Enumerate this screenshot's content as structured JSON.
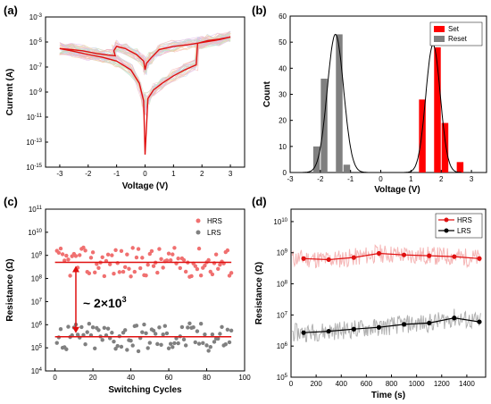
{
  "chart_data": [
    {
      "panel": "(a)",
      "type": "line",
      "xlabel": "Voltage (V)",
      "ylabel": "Current (A)",
      "xlim": [
        -3.5,
        3.5
      ],
      "ylim_log10": [
        -15,
        -3
      ],
      "yscale": "log",
      "x_ticks": [
        "-3",
        "-2",
        "-1",
        "0",
        "1",
        "2",
        "3"
      ],
      "y_ticks": [
        "10-15",
        "10-13",
        "10-11",
        "10-9",
        "10-7",
        "10-5",
        "10-3"
      ],
      "series": [
        {
          "highlight": true,
          "color": "#e01010",
          "points": [
            [
              0,
              1e-14
            ],
            [
              0.1,
              3e-10
            ],
            [
              0.3,
              1.5e-09
            ],
            [
              0.6,
              5e-09
            ],
            [
              1.0,
              2e-08
            ],
            [
              1.4,
              6e-08
            ],
            [
              1.8,
              1.5e-07
            ],
            [
              1.85,
              8e-06
            ],
            [
              2.2,
              1.3e-05
            ],
            [
              2.6,
              1.7e-05
            ],
            [
              3.0,
              2.5e-05
            ],
            [
              2.6,
              1.5e-05
            ],
            [
              2.0,
              9e-06
            ],
            [
              1.5,
              6e-06
            ],
            [
              1.0,
              4.5e-06
            ],
            [
              0.5,
              2.5e-06
            ],
            [
              0.2,
              5e-07
            ],
            [
              0.05,
              2e-07
            ],
            [
              0,
              6e-08
            ],
            [
              -0.05,
              3e-07
            ],
            [
              -0.3,
              1e-06
            ],
            [
              -0.7,
              3e-06
            ],
            [
              -1.0,
              4.5e-06
            ],
            [
              -1.1,
              2e-06
            ],
            [
              -1.05,
              8e-07
            ],
            [
              -1.3,
              9e-07
            ],
            [
              -1.7,
              1.2e-06
            ],
            [
              -2.2,
              2e-06
            ],
            [
              -2.6,
              2.5e-06
            ],
            [
              -3.0,
              3e-06
            ],
            [
              -2.6,
              2e-06
            ],
            [
              -2.0,
              1e-06
            ],
            [
              -1.5,
              6e-07
            ],
            [
              -1.0,
              3e-07
            ],
            [
              -0.5,
              6e-08
            ],
            [
              -0.2,
              5e-09
            ],
            [
              -0.05,
              2e-10
            ],
            [
              0,
              1e-14
            ]
          ]
        }
      ]
    },
    {
      "panel": "(b)",
      "type": "bar",
      "xlabel": "Voltage (V)",
      "ylabel": "Count",
      "xlim": [
        -3,
        3.5
      ],
      "ylim": [
        0,
        60
      ],
      "x_ticks": [
        "-3",
        "-2",
        "-1",
        "0",
        "1",
        "2",
        "3"
      ],
      "y_ticks": [
        "0",
        "10",
        "20",
        "30",
        "40",
        "50",
        "60"
      ],
      "series": [
        {
          "name": "Set",
          "color": "#ff0000",
          "bins": [
            [
              1.25,
              1.5,
              28
            ],
            [
              1.5,
              1.75,
              0
            ],
            [
              1.75,
              2.0,
              48
            ],
            [
              2.0,
              2.25,
              19
            ],
            [
              2.5,
              2.75,
              4
            ]
          ]
        },
        {
          "name": "Reset",
          "color": "#808080",
          "bins": [
            [
              -2.25,
              -2.0,
              10
            ],
            [
              -2.0,
              -1.75,
              36
            ],
            [
              -1.75,
              -1.5,
              0
            ],
            [
              -1.5,
              -1.25,
              53
            ],
            [
              -1.25,
              -1.0,
              3
            ]
          ]
        }
      ],
      "fits": [
        {
          "mu": -1.5,
          "sigma": 0.27,
          "peak": 53
        },
        {
          "mu": 1.73,
          "sigma": 0.24,
          "peak": 49
        }
      ]
    },
    {
      "panel": "(c)",
      "type": "scatter",
      "xlabel": "Switching Cycles",
      "ylabel": "Resistance (Ω)",
      "xlim": [
        -5,
        100
      ],
      "ylim_log10": [
        4,
        11
      ],
      "yscale": "log",
      "x_ticks": [
        "0",
        "20",
        "40",
        "60",
        "80",
        "100"
      ],
      "y_ticks": [
        "10^4",
        "10^5",
        "10^6",
        "10^7",
        "10^8",
        "10^9",
        "10^10",
        "10^11"
      ],
      "annotation": "~ 2×10^3",
      "series": [
        {
          "name": "HRS",
          "color": "#f07070",
          "mean": 500000000.0
        },
        {
          "name": "LRS",
          "color": "#808080",
          "mean": 300000.0
        }
      ]
    },
    {
      "panel": "(d)",
      "type": "line",
      "xlabel": "Time (s)",
      "ylabel": "Resistance (Ω)",
      "xlim": [
        0,
        1550
      ],
      "ylim_log10": [
        5,
        10.4
      ],
      "yscale": "log",
      "x_ticks": [
        "0",
        "200",
        "400",
        "600",
        "800",
        "1000",
        "1200",
        "1400"
      ],
      "y_ticks": [
        "10^5",
        "10^6",
        "10^7",
        "10^8",
        "10^9",
        "10^10"
      ],
      "series": [
        {
          "name": "HRS",
          "color": "#e01010",
          "x": [
            100,
            300,
            500,
            700,
            900,
            1100,
            1300,
            1500
          ],
          "y": [
            650000000.0,
            600000000.0,
            700000000.0,
            950000000.0,
            850000000.0,
            800000000.0,
            750000000.0,
            650000000.0
          ]
        },
        {
          "name": "LRS",
          "color": "#000000",
          "x": [
            100,
            300,
            500,
            700,
            900,
            1100,
            1300,
            1500
          ],
          "y": [
            2700000.0,
            3000000.0,
            3500000.0,
            4000000.0,
            5000000.0,
            5500000.0,
            8000000.0,
            6000000.0
          ]
        }
      ]
    }
  ]
}
